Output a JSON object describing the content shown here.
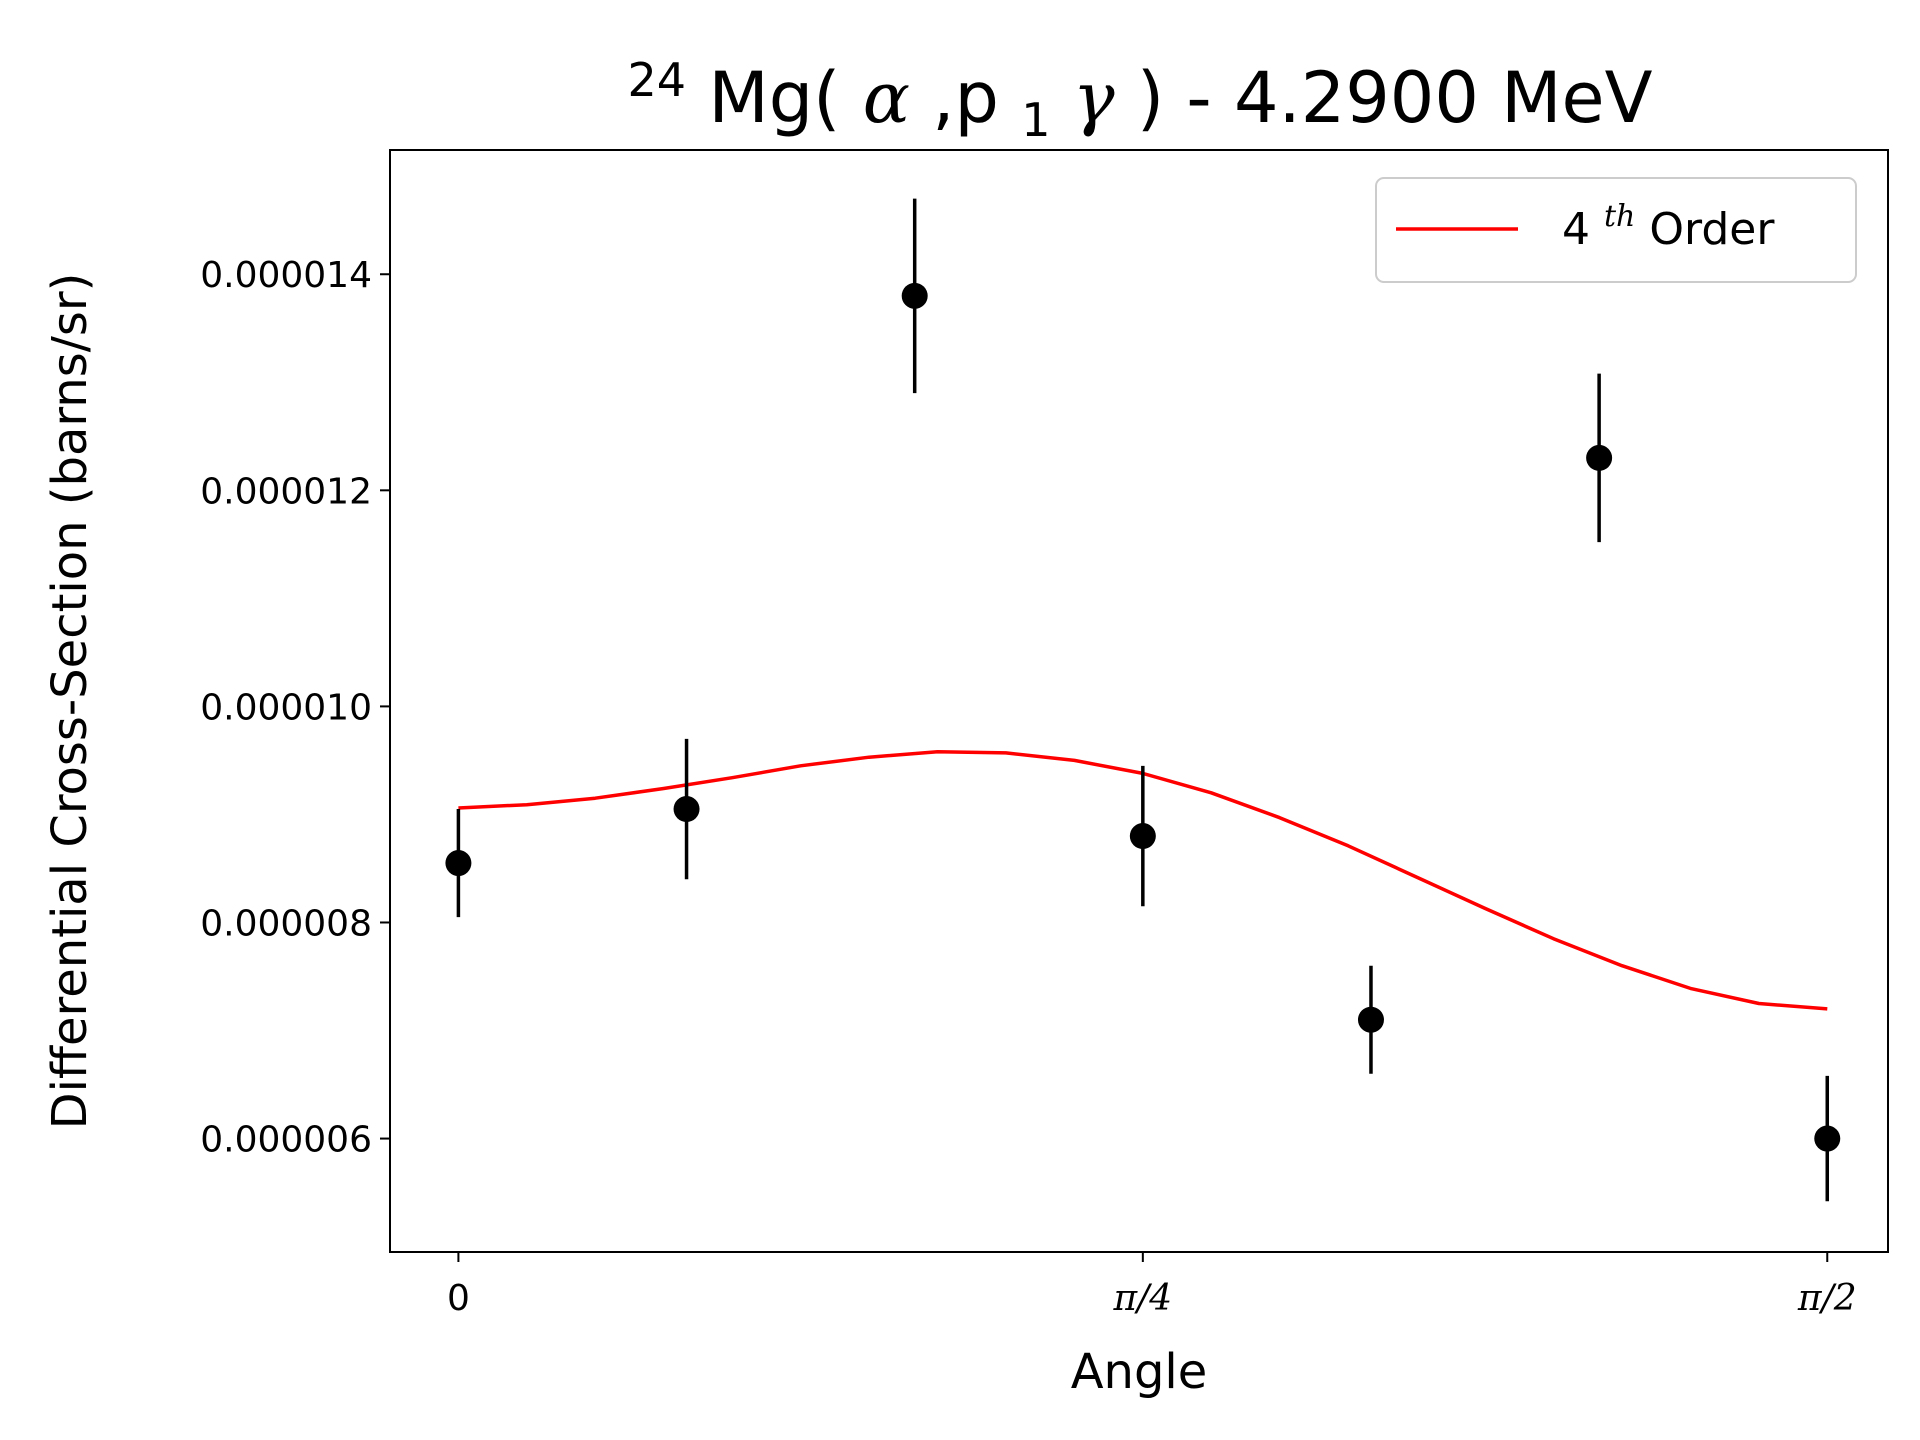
{
  "chart_data": {
    "type": "scatter",
    "title": {
      "mass_number": "24",
      "element": "Mg(",
      "alpha": "α",
      "comma": ",p",
      "sub": "1",
      "gamma": "γ",
      "rest": ") - 4.2900 MeV"
    },
    "xlabel": "Angle",
    "ylabel": "Differential Cross-Section (barns/sr)",
    "xlim": [
      -0.0785,
      1.6405
    ],
    "ylim": [
      4.95e-06,
      1.515e-05
    ],
    "x_ticks": [
      {
        "value": 0,
        "label": "0"
      },
      {
        "value": 0.7854,
        "label": "π/4"
      },
      {
        "value": 1.5708,
        "label": "π/2"
      }
    ],
    "y_ticks": [
      {
        "value": 6e-06,
        "label": "0.000006"
      },
      {
        "value": 8e-06,
        "label": "0.000008"
      },
      {
        "value": 1e-05,
        "label": "0.000010"
      },
      {
        "value": 1.2e-05,
        "label": "0.000012"
      },
      {
        "value": 1.4e-05,
        "label": "0.000014"
      }
    ],
    "grid": false,
    "legend": {
      "position": "top-right",
      "entries": [
        {
          "base": "4",
          "sup": "th",
          "rest": " Order",
          "color": "#ff0000"
        }
      ]
    },
    "series": [
      {
        "kind": "errorbar",
        "color": "#000000",
        "points": [
          {
            "x": 0.0,
            "y": 8.55e-06,
            "err": 5e-07
          },
          {
            "x": 0.2618,
            "y": 9.05e-06,
            "err": 6.5e-07
          },
          {
            "x": 0.5236,
            "y": 1.38e-05,
            "err": 9e-07
          },
          {
            "x": 0.7854,
            "y": 8.8e-06,
            "err": 6.5e-07
          },
          {
            "x": 1.0472,
            "y": 7.1e-06,
            "err": 5e-07
          },
          {
            "x": 1.309,
            "y": 1.23e-05,
            "err": 7.8e-07
          },
          {
            "x": 1.5708,
            "y": 6e-06,
            "err": 5.8e-07
          }
        ]
      },
      {
        "kind": "line",
        "name": "4th Order",
        "color": "#ff0000",
        "x": [
          0.0,
          0.0785,
          0.157,
          0.2356,
          0.3142,
          0.3927,
          0.4712,
          0.5498,
          0.6283,
          0.7069,
          0.7854,
          0.8639,
          0.9425,
          1.021,
          1.0996,
          1.1781,
          1.2566,
          1.3352,
          1.4137,
          1.4923,
          1.5708
        ],
        "y": [
          9.06e-06,
          9.09e-06,
          9.15e-06,
          9.24e-06,
          9.34e-06,
          9.45e-06,
          9.53e-06,
          9.58e-06,
          9.57e-06,
          9.5e-06,
          9.38e-06,
          9.2e-06,
          8.97e-06,
          8.71e-06,
          8.42e-06,
          8.13e-06,
          7.85e-06,
          7.6e-06,
          7.39e-06,
          7.25e-06,
          7.2e-06
        ]
      }
    ]
  }
}
